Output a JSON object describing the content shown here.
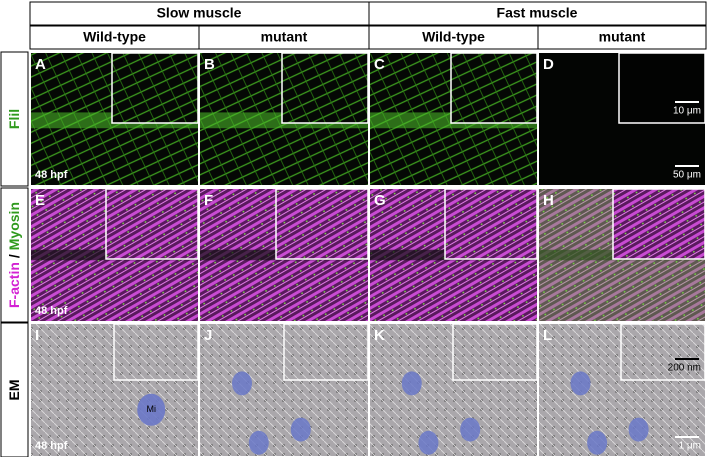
{
  "header": {
    "groups": [
      "Slow muscle",
      "Fast muscle"
    ],
    "columns": [
      "Wild-type",
      "mutant",
      "Wild-type",
      "mutant"
    ]
  },
  "rows": [
    {
      "label": [
        "Flil"
      ]
    },
    {
      "label": [
        "F-actin",
        "/",
        "Myosin"
      ]
    },
    {
      "label": [
        "EM"
      ]
    }
  ],
  "panels": [
    {
      "letter": "A",
      "time": "48 hpf"
    },
    {
      "letter": "B"
    },
    {
      "letter": "C"
    },
    {
      "letter": "D",
      "annotations": [
        "10 μm",
        "50 μm"
      ]
    },
    {
      "letter": "E",
      "time": "48 hpf"
    },
    {
      "letter": "F"
    },
    {
      "letter": "G"
    },
    {
      "letter": "H"
    },
    {
      "letter": "I",
      "time": "48 hpf",
      "annotations": [
        "Mi"
      ]
    },
    {
      "letter": "J"
    },
    {
      "letter": "K"
    },
    {
      "letter": "L",
      "annotations": [
        "200 nm",
        "1 μm"
      ]
    }
  ]
}
